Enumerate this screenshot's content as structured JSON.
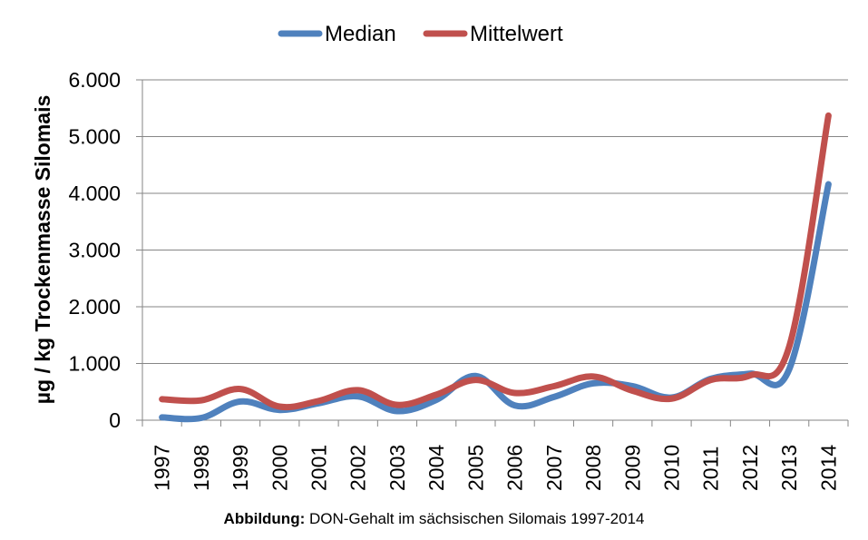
{
  "chart_data": {
    "type": "line",
    "title": "",
    "ylabel": "µg / kg Trockenmasse Silomais",
    "xlabel": "",
    "ylim": [
      0,
      6000
    ],
    "yticks": [
      0,
      1000,
      2000,
      3000,
      4000,
      5000,
      6000
    ],
    "ytick_labels": [
      "0",
      "1.000",
      "2.000",
      "3.000",
      "4.000",
      "5.000",
      "6.000"
    ],
    "grid": "horizontal",
    "legend_position": "top",
    "x": [
      "1997",
      "1998",
      "1999",
      "2000",
      "2001",
      "2002",
      "2003",
      "2004",
      "2005",
      "2006",
      "2007",
      "2008",
      "2009",
      "2010",
      "2011",
      "2012",
      "2013",
      "2014"
    ],
    "series": [
      {
        "name": "Median",
        "color": "#4F81BD",
        "values": [
          50,
          40,
          330,
          180,
          300,
          420,
          160,
          360,
          780,
          260,
          410,
          650,
          600,
          400,
          730,
          820,
          900,
          4160
        ]
      },
      {
        "name": "Mittelwert",
        "color": "#C0504D",
        "values": [
          370,
          350,
          550,
          240,
          340,
          530,
          270,
          450,
          710,
          480,
          600,
          770,
          520,
          380,
          710,
          790,
          1300,
          5370
        ]
      }
    ]
  },
  "caption": {
    "label": "Abbildung:",
    "text": "DON-Gehalt im sächsischen Silomais 1997-2014"
  }
}
